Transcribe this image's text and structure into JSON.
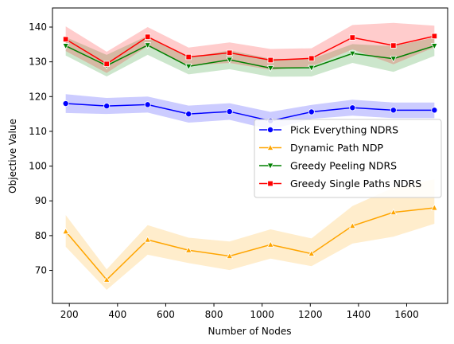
{
  "chart_data": {
    "type": "line",
    "xlabel": "Number of Nodes",
    "ylabel": "Objective Value",
    "xlim": [
      130,
      1770
    ],
    "ylim": [
      60.5,
      145.5
    ],
    "xticks": [
      200,
      400,
      600,
      800,
      1000,
      1200,
      1400,
      1600
    ],
    "yticks": [
      70,
      80,
      90,
      100,
      110,
      120,
      130,
      140
    ],
    "grid": false,
    "legend_position": "center-right",
    "x": [
      185,
      355,
      525,
      695,
      865,
      1035,
      1205,
      1375,
      1545,
      1715
    ],
    "series": [
      {
        "name": "Pick Everything NDRS",
        "color": "#0000ff",
        "marker": "circle",
        "values": [
          118.0,
          117.3,
          117.7,
          115.0,
          115.7,
          113.0,
          115.6,
          116.8,
          116.1,
          116.1
        ],
        "lower": [
          115.3,
          115.0,
          115.4,
          112.5,
          113.3,
          110.5,
          113.6,
          114.5,
          113.8,
          113.8
        ],
        "upper": [
          120.7,
          119.6,
          120.0,
          117.4,
          118.1,
          115.6,
          117.6,
          119.1,
          118.3,
          118.3
        ]
      },
      {
        "name": "Dynamic Path NDP",
        "color": "#ffa500",
        "marker": "triangle-up",
        "values": [
          81.2,
          67.3,
          78.8,
          75.8,
          74.1,
          77.4,
          74.8,
          82.8,
          86.7,
          88.0
        ],
        "lower": [
          76.8,
          64.4,
          74.5,
          72.1,
          70.1,
          73.4,
          71.2,
          77.7,
          79.7,
          83.4
        ],
        "upper": [
          85.9,
          70.3,
          83.0,
          79.4,
          78.3,
          81.8,
          79.2,
          88.5,
          93.8,
          96.2
        ]
      },
      {
        "name": "Greedy Peeling NDRS",
        "color": "#008000",
        "marker": "triangle-down",
        "values": [
          134.6,
          128.9,
          134.8,
          128.7,
          130.6,
          128.2,
          128.3,
          132.4,
          130.9,
          134.6
        ],
        "lower": [
          131.8,
          125.8,
          132.0,
          126.4,
          127.9,
          125.7,
          125.8,
          129.7,
          127.1,
          131.7
        ],
        "upper": [
          137.1,
          132.0,
          137.5,
          131.2,
          133.3,
          130.9,
          130.8,
          135.1,
          134.5,
          137.0
        ]
      },
      {
        "name": "Greedy Single Paths NDRS",
        "color": "#ff0000",
        "marker": "square",
        "values": [
          136.5,
          129.4,
          137.2,
          131.4,
          132.6,
          130.5,
          131.0,
          137.0,
          134.7,
          137.4
        ],
        "lower": [
          133.1,
          126.8,
          134.5,
          128.9,
          129.7,
          127.7,
          128.7,
          133.6,
          129.3,
          134.2
        ],
        "upper": [
          140.2,
          132.9,
          140.0,
          134.1,
          135.6,
          133.7,
          133.9,
          140.6,
          141.2,
          140.4
        ]
      }
    ]
  }
}
